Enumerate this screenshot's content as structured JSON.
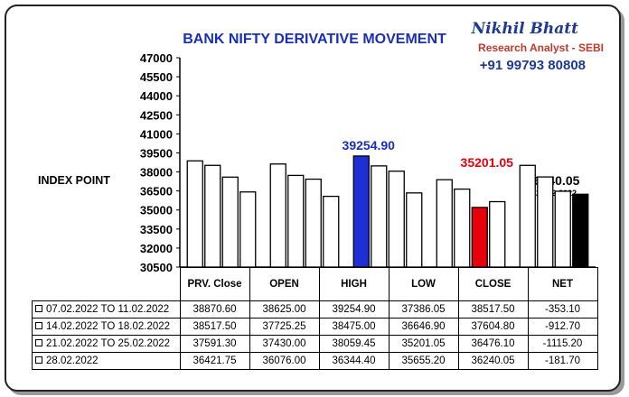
{
  "header": {
    "title": "BANK NIFTY DERIVATIVE MOVEMENT",
    "brand_name": "Nikhil Bhatt",
    "brand_sub": "Research Analyst - SEBI",
    "brand_phone": "+91 99793 80808"
  },
  "chart_data": {
    "type": "bar",
    "ylabel": "INDEX POINT",
    "ylim": [
      30500,
      47000
    ],
    "yticks": [
      "47000",
      "45500",
      "44000",
      "42500",
      "41000",
      "39500",
      "38000",
      "36500",
      "35000",
      "33500",
      "32000",
      "30500"
    ],
    "ytick_values": [
      47000,
      45500,
      44000,
      42500,
      41000,
      39500,
      38000,
      36500,
      35000,
      33500,
      32000,
      30500
    ],
    "categories": [
      "PRV. Close",
      "OPEN",
      "HIGH",
      "LOW",
      "CLOSE"
    ],
    "series": [
      {
        "name": "07.02.2022 TO 11.02.2022",
        "values": [
          38870.6,
          38625.0,
          39254.9,
          37386.05,
          38517.5
        ]
      },
      {
        "name": "14.02.2022 TO 18.02.2022",
        "values": [
          38517.5,
          37725.25,
          38475.0,
          36646.9,
          37604.8
        ]
      },
      {
        "name": "21.02.2022 TO 25.02.2022",
        "values": [
          37591.3,
          37430.0,
          38059.45,
          35201.05,
          36476.1
        ]
      },
      {
        "name": "28.02.2022",
        "values": [
          36421.75,
          36076.0,
          36344.4,
          35655.2,
          36240.05
        ]
      }
    ],
    "highlights": {
      "high": {
        "category": "HIGH",
        "series": 0,
        "color": "#1f2fd6",
        "label_color": "#1a2fb8"
      },
      "low": {
        "category": "LOW",
        "series": 2,
        "color": "#e8000b",
        "label_color": "#e8000b"
      },
      "close": {
        "category": "CLOSE",
        "series": 3,
        "color": "#000000"
      }
    },
    "annotations": {
      "high_label": "39254.90",
      "low_label": "35201.05",
      "last_close": "36240.05",
      "last_close_date": "28.02.2022"
    },
    "grid": false
  },
  "table": {
    "headers": [
      "PRV. Close",
      "OPEN",
      "HIGH",
      "LOW",
      "CLOSE",
      "NET"
    ],
    "rows": [
      {
        "label": "07.02.2022 TO 11.02.2022",
        "cells": [
          "38870.60",
          "38625.00",
          "39254.90",
          "37386.05",
          "38517.50",
          "-353.10"
        ]
      },
      {
        "label": "14.02.2022 TO 18.02.2022",
        "cells": [
          "38517.50",
          "37725.25",
          "38475.00",
          "36646.90",
          "37604.80",
          "-912.70"
        ]
      },
      {
        "label": "21.02.2022 TO 25.02.2022",
        "cells": [
          "37591.30",
          "37430.00",
          "38059.45",
          "35201.05",
          "36476.10",
          "-1115.20"
        ]
      },
      {
        "label": "28.02.2022",
        "cells": [
          "36421.75",
          "36076.00",
          "36344.40",
          "35655.20",
          "36240.05",
          "-181.70"
        ]
      }
    ]
  }
}
